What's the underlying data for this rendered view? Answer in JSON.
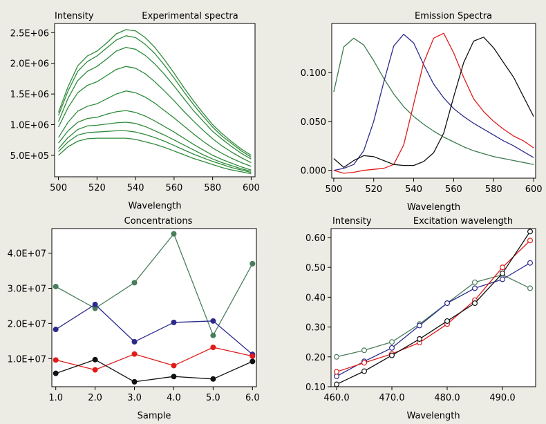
{
  "chart_data": [
    {
      "type": "line",
      "title": "Experimental spectra",
      "ylabel": "Intensity",
      "xlabel": "Wavelength",
      "xlim": [
        498,
        602
      ],
      "ylim": [
        150000,
        2650000
      ],
      "xticks": [
        500,
        520,
        540,
        560,
        580,
        600
      ],
      "xtick_labels": [
        "500",
        "520",
        "540",
        "560",
        "580",
        "600"
      ],
      "yticks": [
        500000,
        1000000,
        1500000,
        2000000,
        2500000
      ],
      "ytick_labels": [
        "5.0E+05",
        "1.0E+06",
        "1.5E+06",
        "2.0E+06",
        "2.5E+06"
      ],
      "x": [
        500,
        505,
        510,
        515,
        520,
        525,
        530,
        535,
        540,
        545,
        550,
        555,
        560,
        565,
        570,
        575,
        580,
        585,
        590,
        595,
        600
      ],
      "series": [
        {
          "color": "#2e8b3a",
          "values": [
            1200000,
            1620000,
            1960000,
            2120000,
            2200000,
            2330000,
            2480000,
            2550000,
            2530000,
            2420000,
            2260000,
            2060000,
            1840000,
            1610000,
            1390000,
            1190000,
            1000000,
            850000,
            720000,
            600000,
            500000
          ]
        },
        {
          "color": "#2e8b3a",
          "values": [
            1150000,
            1550000,
            1870000,
            2030000,
            2120000,
            2250000,
            2380000,
            2450000,
            2420000,
            2310000,
            2160000,
            1970000,
            1760000,
            1540000,
            1330000,
            1140000,
            960000,
            810000,
            690000,
            570000,
            470000
          ]
        },
        {
          "color": "#2e8b3a",
          "values": [
            1050000,
            1430000,
            1720000,
            1870000,
            1950000,
            2070000,
            2200000,
            2260000,
            2230000,
            2130000,
            1990000,
            1820000,
            1630000,
            1430000,
            1230000,
            1060000,
            890000,
            760000,
            640000,
            530000,
            440000
          ]
        },
        {
          "color": "#2e8b3a",
          "values": [
            960000,
            1280000,
            1520000,
            1640000,
            1700000,
            1800000,
            1900000,
            1950000,
            1920000,
            1830000,
            1700000,
            1550000,
            1390000,
            1220000,
            1060000,
            910000,
            770000,
            650000,
            550000,
            460000,
            380000
          ]
        },
        {
          "color": "#2e8b3a",
          "values": [
            790000,
            1040000,
            1220000,
            1300000,
            1340000,
            1420000,
            1500000,
            1550000,
            1520000,
            1450000,
            1350000,
            1230000,
            1110000,
            980000,
            850000,
            730000,
            620000,
            530000,
            450000,
            380000,
            320000
          ]
        },
        {
          "color": "#2e8b3a",
          "values": [
            700000,
            900000,
            1040000,
            1100000,
            1120000,
            1170000,
            1210000,
            1230000,
            1200000,
            1140000,
            1060000,
            970000,
            880000,
            780000,
            680000,
            590000,
            500000,
            430000,
            370000,
            310000,
            260000
          ]
        },
        {
          "color": "#2e8b3a",
          "values": [
            610000,
            790000,
            920000,
            980000,
            990000,
            1010000,
            1030000,
            1040000,
            1020000,
            970000,
            900000,
            830000,
            750000,
            670000,
            590000,
            510000,
            440000,
            380000,
            330000,
            280000,
            240000
          ]
        },
        {
          "color": "#2e8b3a",
          "values": [
            560000,
            720000,
            830000,
            870000,
            880000,
            890000,
            900000,
            900000,
            880000,
            840000,
            790000,
            730000,
            660000,
            590000,
            520000,
            460000,
            400000,
            350000,
            300000,
            260000,
            220000
          ]
        },
        {
          "color": "#2e8b3a",
          "values": [
            500000,
            640000,
            730000,
            770000,
            780000,
            780000,
            780000,
            780000,
            760000,
            720000,
            680000,
            630000,
            570000,
            510000,
            450000,
            400000,
            350000,
            300000,
            260000,
            230000,
            200000
          ]
        }
      ]
    },
    {
      "type": "line",
      "title": "Emission Spectra",
      "xlabel": "Wavelength",
      "xlim": [
        499,
        601
      ],
      "ylim": [
        -0.008,
        0.15
      ],
      "xticks": [
        500,
        520,
        540,
        560,
        580,
        600
      ],
      "xtick_labels": [
        "500",
        "520",
        "540",
        "560",
        "580",
        "600"
      ],
      "yticks": [
        0.0,
        0.05,
        0.1
      ],
      "ytick_labels": [
        "0.000",
        "0.050",
        "0.100"
      ],
      "x": [
        500,
        505,
        510,
        515,
        520,
        525,
        530,
        535,
        540,
        545,
        550,
        555,
        560,
        565,
        570,
        575,
        580,
        585,
        590,
        595,
        600
      ],
      "series": [
        {
          "color": "#3a7a4e",
          "values": [
            0.08,
            0.126,
            0.135,
            0.128,
            0.112,
            0.094,
            0.078,
            0.065,
            0.055,
            0.047,
            0.04,
            0.034,
            0.029,
            0.024,
            0.02,
            0.017,
            0.014,
            0.012,
            0.01,
            0.008,
            0.006
          ]
        },
        {
          "color": "#2b2b8c",
          "values": [
            0.0,
            0.002,
            0.006,
            0.02,
            0.05,
            0.09,
            0.127,
            0.139,
            0.13,
            0.108,
            0.088,
            0.074,
            0.063,
            0.055,
            0.048,
            0.042,
            0.036,
            0.03,
            0.025,
            0.019,
            0.013
          ]
        },
        {
          "color": "#e01b1b",
          "values": [
            0.0,
            -0.003,
            -0.002,
            0.0,
            0.001,
            0.002,
            0.006,
            0.026,
            0.068,
            0.11,
            0.135,
            0.14,
            0.12,
            0.095,
            0.073,
            0.06,
            0.05,
            0.042,
            0.035,
            0.03,
            0.023
          ]
        },
        {
          "color": "#111111",
          "values": [
            0.012,
            0.003,
            0.01,
            0.015,
            0.014,
            0.01,
            0.006,
            0.005,
            0.005,
            0.009,
            0.018,
            0.038,
            0.075,
            0.11,
            0.132,
            0.136,
            0.125,
            0.11,
            0.095,
            0.075,
            0.055
          ]
        }
      ]
    },
    {
      "type": "line",
      "title": "Concentrations",
      "xlabel": "Sample",
      "xlim": [
        0.9,
        6.1
      ],
      "ylim": [
        2000000,
        47000000
      ],
      "xticks": [
        1,
        2,
        3,
        4,
        5,
        6
      ],
      "xtick_labels": [
        "1.0",
        "2.0",
        "3.0",
        "4.0",
        "5.0",
        "6.0"
      ],
      "yticks": [
        10000000,
        20000000,
        30000000,
        40000000
      ],
      "ytick_labels": [
        "1.0E+07",
        "2.0E+07",
        "3.0E+07",
        "4.0E+07"
      ],
      "x": [
        1,
        2,
        3,
        4,
        5,
        6
      ],
      "series": [
        {
          "color": "#4a7d5c",
          "values": [
            30500000,
            24300000,
            31600000,
            45500000,
            16600000,
            37000000
          ]
        },
        {
          "color": "#2b2b8c",
          "values": [
            18300000,
            25400000,
            14800000,
            20300000,
            20700000,
            11200000
          ]
        },
        {
          "color": "#e01b1b",
          "values": [
            9600000,
            6800000,
            11300000,
            8000000,
            13200000,
            10700000
          ]
        },
        {
          "color": "#111111",
          "values": [
            5800000,
            9700000,
            3400000,
            4900000,
            4200000,
            9200000
          ]
        }
      ]
    },
    {
      "type": "line",
      "title": "Excitation wavelength",
      "ylabel": "Intensity",
      "xlabel": "Wavelength",
      "xlim": [
        459,
        496
      ],
      "ylim": [
        0.1,
        0.63
      ],
      "xticks": [
        460,
        470,
        480,
        490
      ],
      "xtick_labels": [
        "460.0",
        "470.0",
        "480.0",
        "490.0"
      ],
      "yticks": [
        0.1,
        0.2,
        0.3,
        0.4,
        0.5,
        0.6
      ],
      "ytick_labels": [
        "0.10",
        "0.20",
        "0.30",
        "0.40",
        "0.50",
        "0.60"
      ],
      "x": [
        460,
        465,
        470,
        475,
        480,
        485,
        490,
        495
      ],
      "series": [
        {
          "color": "#4a7d5c",
          "values": [
            0.2,
            0.222,
            0.25,
            0.31,
            0.38,
            0.45,
            0.475,
            0.43
          ]
        },
        {
          "color": "#2b2b8c",
          "values": [
            0.135,
            0.185,
            0.23,
            0.305,
            0.38,
            0.43,
            0.46,
            0.515
          ]
        },
        {
          "color": "#e01b1b",
          "values": [
            0.15,
            0.18,
            0.21,
            0.248,
            0.31,
            0.39,
            0.5,
            0.59
          ]
        },
        {
          "color": "#111111",
          "values": [
            0.108,
            0.152,
            0.205,
            0.26,
            0.32,
            0.38,
            0.48,
            0.62
          ]
        }
      ]
    }
  ]
}
